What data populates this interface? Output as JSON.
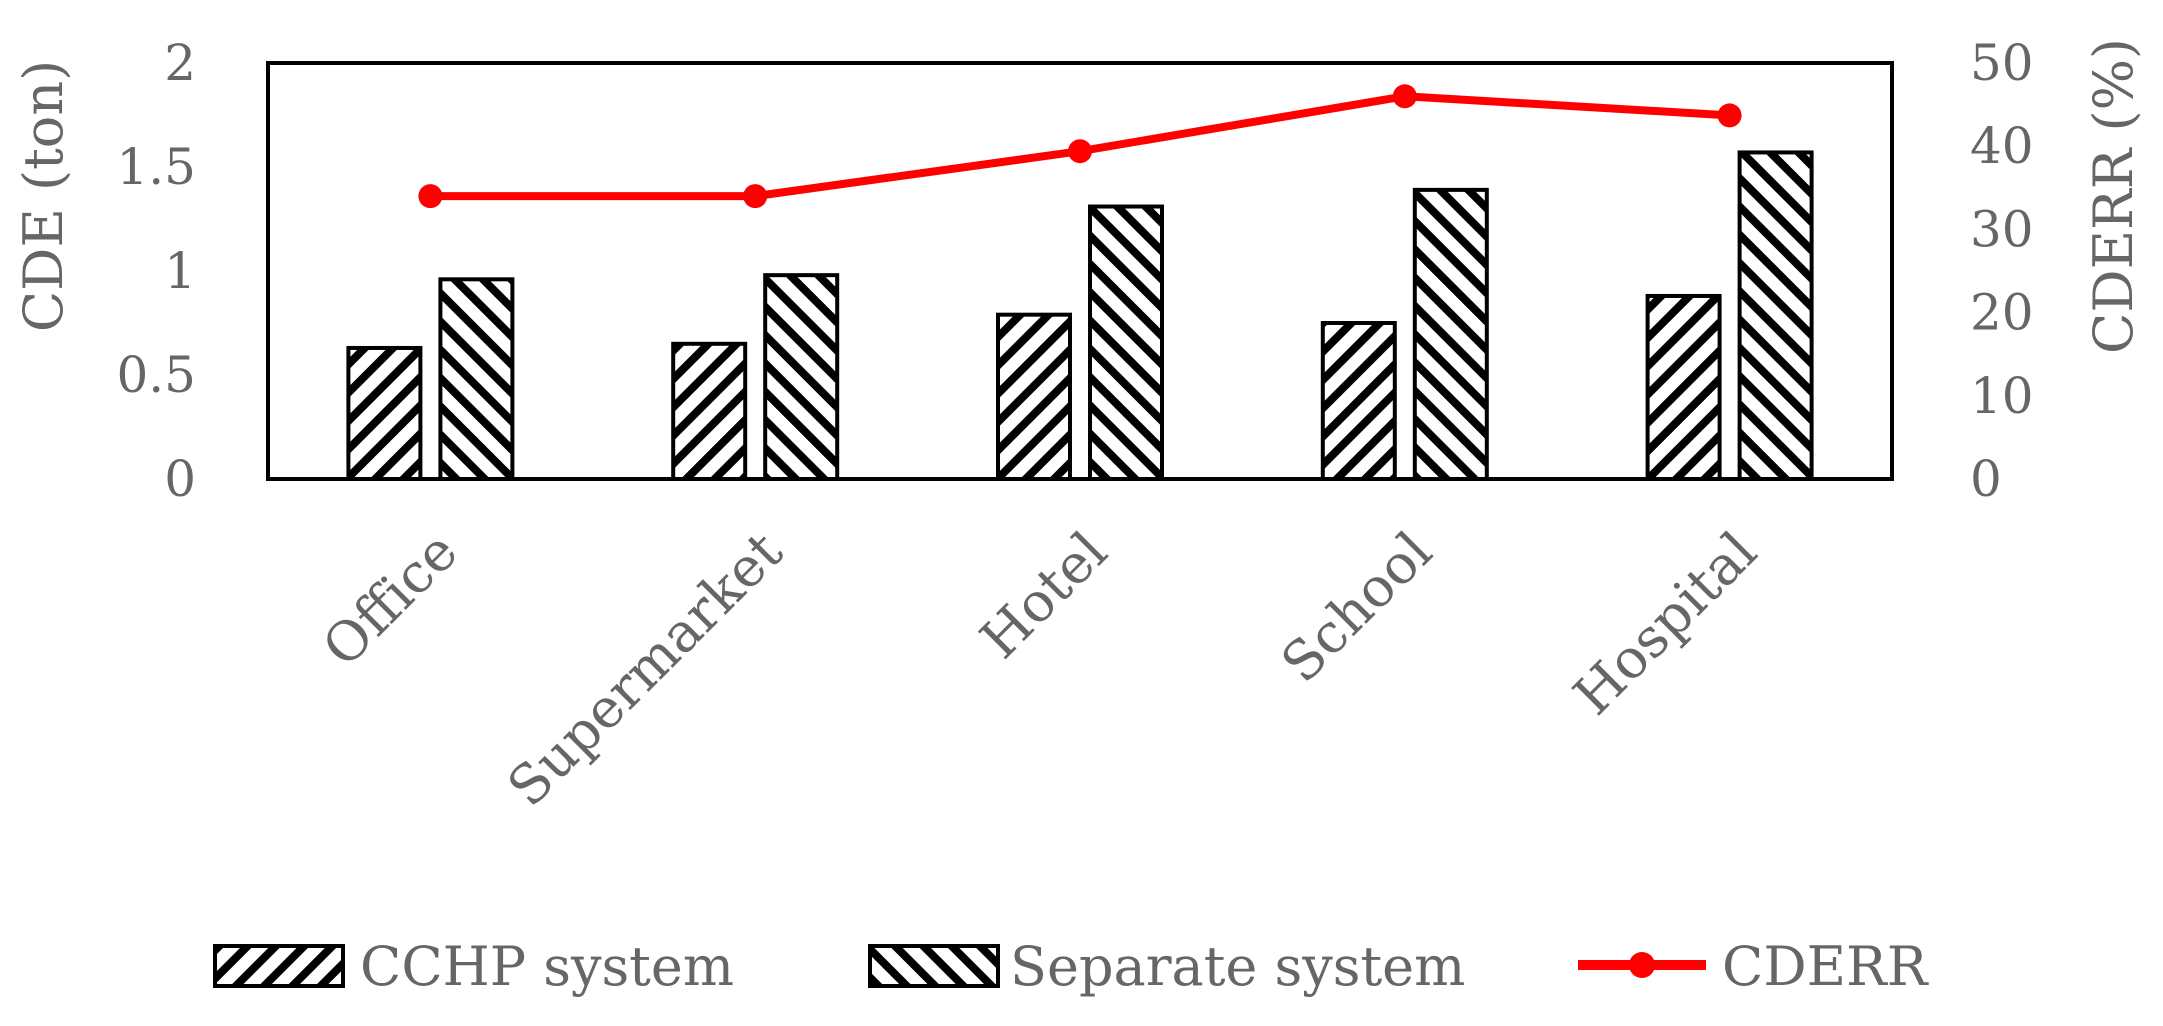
{
  "chart_data": {
    "type": "bar",
    "categories": [
      "Office",
      "Supermarket",
      "Hotel",
      "School",
      "Hospital"
    ],
    "series": [
      {
        "name": "CCHP system",
        "type": "bar",
        "axis": "left",
        "pattern": "hatch-forward",
        "values": [
          0.63,
          0.65,
          0.79,
          0.75,
          0.88
        ]
      },
      {
        "name": "Separate system",
        "type": "bar",
        "axis": "left",
        "pattern": "hatch-backward",
        "values": [
          0.96,
          0.98,
          1.31,
          1.39,
          1.57
        ]
      },
      {
        "name": "CDERR",
        "type": "line",
        "axis": "right",
        "color": "#ff0000",
        "values": [
          34.0,
          34.0,
          39.4,
          46.0,
          43.7
        ]
      }
    ],
    "ylabel": "CDE (ton)",
    "ylabel_right": "CDERR (%)",
    "ylim": [
      0,
      2
    ],
    "ylim_right": [
      0,
      50
    ],
    "yticks": [
      "0",
      "0.5",
      "1",
      "1.5",
      "2"
    ],
    "yticks_right": [
      "0",
      "10",
      "20",
      "30",
      "40",
      "50"
    ],
    "legend_position": "bottom",
    "grid": false
  }
}
